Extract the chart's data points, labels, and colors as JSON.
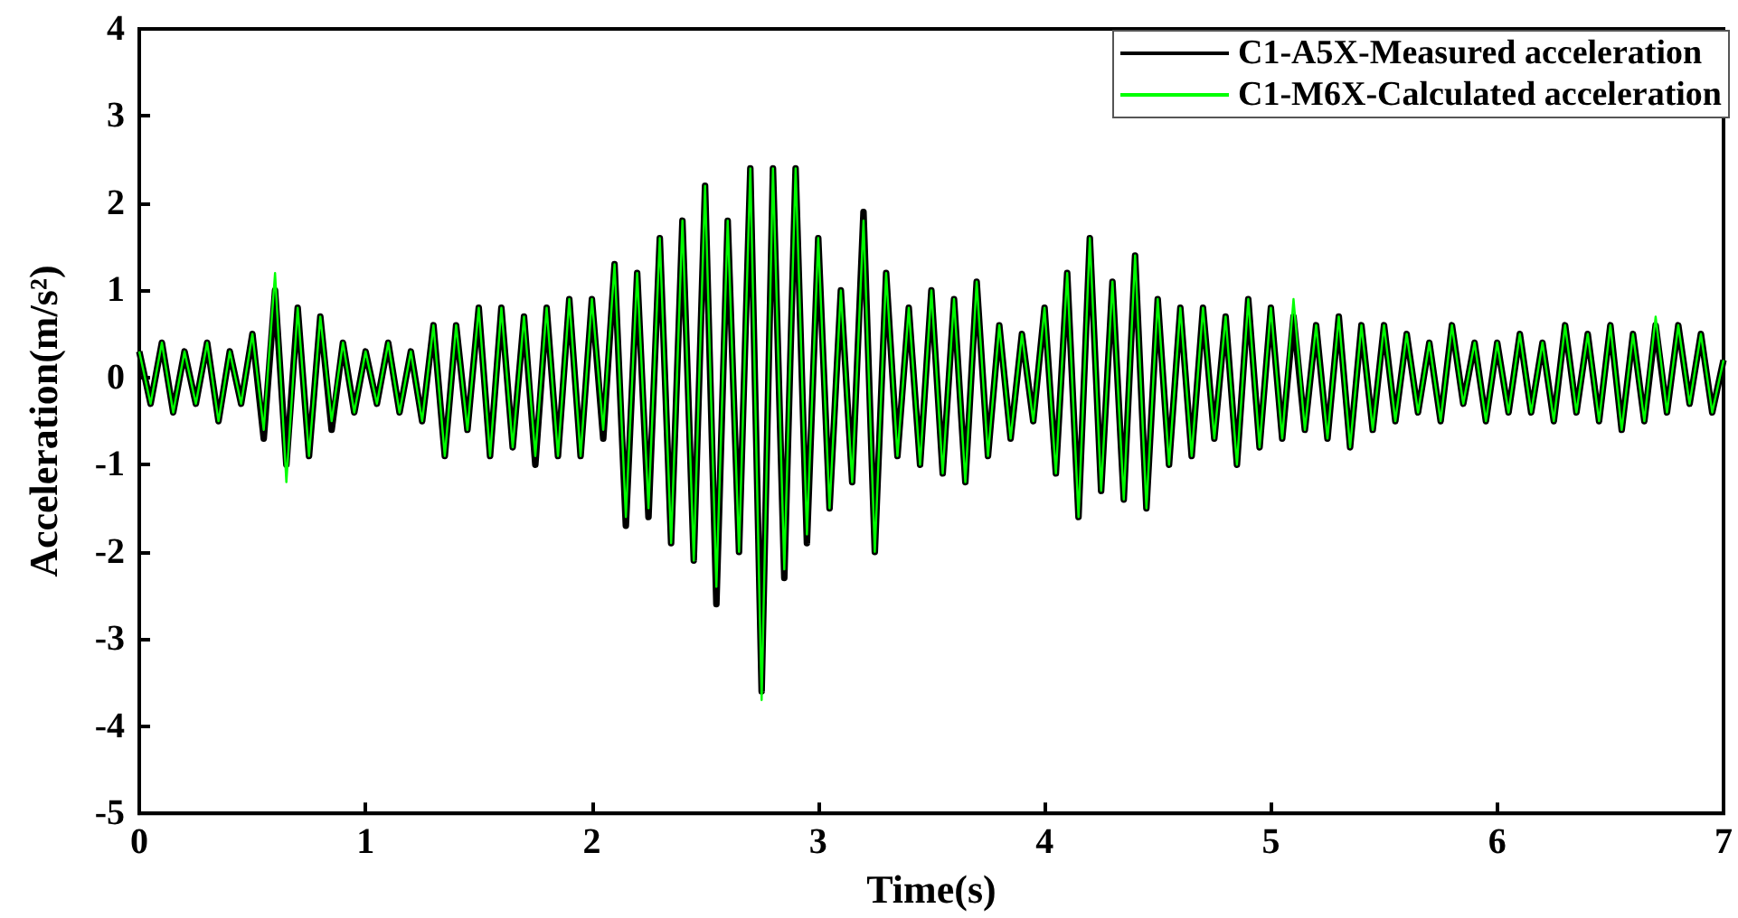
{
  "chart_data": {
    "type": "line",
    "xlabel": "Time(s)",
    "ylabel": "Acceleration(m/s²)",
    "x": [
      0,
      0.05,
      0.1,
      0.15,
      0.2,
      0.25,
      0.3,
      0.35,
      0.4,
      0.45,
      0.5,
      0.55,
      0.6,
      0.65,
      0.7,
      0.75,
      0.8,
      0.85,
      0.9,
      0.95,
      1,
      1.05,
      1.1,
      1.15,
      1.2,
      1.25,
      1.3,
      1.35,
      1.4,
      1.45,
      1.5,
      1.55,
      1.6,
      1.65,
      1.7,
      1.75,
      1.8,
      1.85,
      1.9,
      1.95,
      2,
      2.05,
      2.1,
      2.15,
      2.2,
      2.25,
      2.3,
      2.35,
      2.4,
      2.45,
      2.5,
      2.55,
      2.6,
      2.65,
      2.7,
      2.75,
      2.8,
      2.85,
      2.9,
      2.95,
      3,
      3.05,
      3.1,
      3.15,
      3.2,
      3.25,
      3.3,
      3.35,
      3.4,
      3.45,
      3.5,
      3.55,
      3.6,
      3.65,
      3.7,
      3.75,
      3.8,
      3.85,
      3.9,
      3.95,
      4,
      4.05,
      4.1,
      4.15,
      4.2,
      4.25,
      4.3,
      4.35,
      4.4,
      4.45,
      4.5,
      4.55,
      4.6,
      4.65,
      4.7,
      4.75,
      4.8,
      4.85,
      4.9,
      4.95,
      5,
      5.05,
      5.1,
      5.15,
      5.2,
      5.25,
      5.3,
      5.35,
      5.4,
      5.45,
      5.5,
      5.55,
      5.6,
      5.65,
      5.7,
      5.75,
      5.8,
      5.85,
      5.9,
      5.95,
      6,
      6.05,
      6.1,
      6.15,
      6.2,
      6.25,
      6.3,
      6.35,
      6.4,
      6.45,
      6.5,
      6.55,
      6.6,
      6.65,
      6.7,
      6.75,
      6.8,
      6.85,
      6.9,
      6.95,
      7
    ],
    "series": [
      {
        "name": "C1-A5X-Measured acceleration",
        "color": "#000000",
        "values": [
          0.3,
          -0.3,
          0.4,
          -0.4,
          0.3,
          -0.3,
          0.4,
          -0.5,
          0.3,
          -0.3,
          0.5,
          -0.7,
          1.0,
          -1.0,
          0.8,
          -0.9,
          0.7,
          -0.6,
          0.4,
          -0.4,
          0.3,
          -0.3,
          0.4,
          -0.4,
          0.3,
          -0.5,
          0.6,
          -0.9,
          0.6,
          -0.6,
          0.8,
          -0.9,
          0.8,
          -0.8,
          0.7,
          -1.0,
          0.8,
          -0.9,
          0.9,
          -0.9,
          0.9,
          -0.7,
          1.3,
          -1.7,
          1.2,
          -1.6,
          1.6,
          -1.9,
          1.8,
          -2.1,
          2.2,
          -2.6,
          1.8,
          -2.0,
          2.4,
          -3.6,
          2.4,
          -2.3,
          2.4,
          -1.9,
          1.6,
          -1.5,
          1.0,
          -1.2,
          1.9,
          -2.0,
          1.2,
          -0.9,
          0.8,
          -1.0,
          1.0,
          -1.1,
          0.9,
          -1.2,
          1.1,
          -0.9,
          0.6,
          -0.7,
          0.5,
          -0.5,
          0.8,
          -1.1,
          1.2,
          -1.6,
          1.6,
          -1.3,
          1.1,
          -1.4,
          1.4,
          -1.5,
          0.9,
          -1.0,
          0.8,
          -0.9,
          0.8,
          -0.7,
          0.7,
          -1.0,
          0.9,
          -0.8,
          0.8,
          -0.7,
          0.7,
          -0.6,
          0.6,
          -0.7,
          0.7,
          -0.8,
          0.6,
          -0.6,
          0.6,
          -0.5,
          0.5,
          -0.4,
          0.4,
          -0.5,
          0.6,
          -0.3,
          0.4,
          -0.5,
          0.4,
          -0.4,
          0.5,
          -0.4,
          0.4,
          -0.5,
          0.6,
          -0.4,
          0.5,
          -0.5,
          0.6,
          -0.6,
          0.5,
          -0.5,
          0.6,
          -0.4,
          0.6,
          -0.3,
          0.5,
          -0.4,
          0.2
        ]
      },
      {
        "name": "C1-M6X-Calculated acceleration",
        "color": "#00ff00",
        "values": [
          0.3,
          -0.3,
          0.4,
          -0.4,
          0.3,
          -0.3,
          0.4,
          -0.5,
          0.3,
          -0.3,
          0.5,
          -0.6,
          1.2,
          -1.2,
          0.8,
          -0.9,
          0.7,
          -0.5,
          0.4,
          -0.4,
          0.3,
          -0.3,
          0.4,
          -0.4,
          0.3,
          -0.5,
          0.6,
          -0.9,
          0.6,
          -0.6,
          0.8,
          -0.9,
          0.8,
          -0.8,
          0.7,
          -0.9,
          0.8,
          -0.9,
          0.9,
          -0.9,
          0.9,
          -0.6,
          1.3,
          -1.6,
          1.2,
          -1.5,
          1.6,
          -1.9,
          1.8,
          -2.1,
          2.2,
          -2.4,
          1.8,
          -2.0,
          2.4,
          -3.7,
          2.4,
          -2.2,
          2.4,
          -1.8,
          1.6,
          -1.5,
          1.0,
          -1.2,
          1.8,
          -2.0,
          1.2,
          -0.9,
          0.8,
          -1.0,
          1.0,
          -1.1,
          0.9,
          -1.2,
          1.1,
          -0.9,
          0.6,
          -0.7,
          0.5,
          -0.5,
          0.8,
          -1.1,
          1.2,
          -1.6,
          1.6,
          -1.3,
          1.1,
          -1.4,
          1.4,
          -1.5,
          0.9,
          -1.0,
          0.8,
          -0.9,
          0.8,
          -0.7,
          0.7,
          -1.0,
          0.9,
          -0.8,
          0.8,
          -0.7,
          0.9,
          -0.6,
          0.6,
          -0.7,
          0.7,
          -0.8,
          0.6,
          -0.6,
          0.6,
          -0.5,
          0.5,
          -0.4,
          0.4,
          -0.5,
          0.6,
          -0.3,
          0.4,
          -0.5,
          0.4,
          -0.4,
          0.5,
          -0.4,
          0.4,
          -0.5,
          0.6,
          -0.4,
          0.5,
          -0.5,
          0.6,
          -0.6,
          0.5,
          -0.5,
          0.7,
          -0.4,
          0.6,
          -0.3,
          0.5,
          -0.4,
          0.2
        ]
      }
    ],
    "xlim": [
      0,
      7
    ],
    "xticks": [
      0,
      1,
      2,
      3,
      4,
      5,
      6,
      7
    ],
    "ylim": [
      -5,
      4
    ],
    "yticks": [
      -5,
      -4,
      -3,
      -2,
      -1,
      0,
      1,
      2,
      3,
      4
    ],
    "grid": false,
    "legend": "top right",
    "marker": "none",
    "line_style": "solid"
  }
}
